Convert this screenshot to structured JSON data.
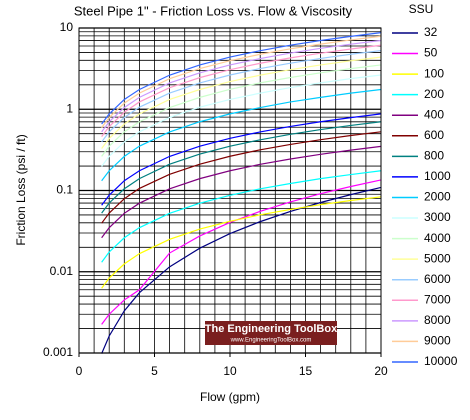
{
  "chart_data": {
    "type": "line",
    "title": "Steel Pipe 1\" - Friction Loss vs. Flow & Viscosity",
    "x_label": "Flow (gpm)",
    "y_label": "Friction Loss (psi / ft)",
    "legend_title": "SSU",
    "legend_position": "right",
    "watermark": "The Engineering ToolBox",
    "watermark_url": "www.EngineeringToolBox.com",
    "y_log": true,
    "grid": true,
    "minor_grid": true,
    "xlim": [
      0,
      20
    ],
    "xticks": [
      0,
      5,
      10,
      15,
      20
    ],
    "ylim": [
      0.001,
      10
    ],
    "yticks": [
      0.001,
      0.01,
      0.1,
      1,
      10
    ],
    "x": [
      1.5,
      2,
      3,
      4,
      6,
      8,
      10,
      12,
      14,
      16,
      18,
      20
    ],
    "series": [
      {
        "name": "32",
        "color": "#000080",
        "values": [
          0.000983,
          0.00162,
          0.0033,
          0.00552,
          0.0115,
          0.0195,
          0.0295,
          0.0414,
          0.0553,
          0.0712,
          0.089,
          0.109
        ]
      },
      {
        "name": "50",
        "color": "#ff00ff",
        "values": [
          0.00225,
          0.003,
          0.0045,
          0.006,
          0.017,
          0.0276,
          0.0404,
          0.0554,
          0.0724,
          0.0914,
          0.112,
          0.135
        ]
      },
      {
        "name": "100",
        "color": "#ffff00",
        "values": [
          0.00627,
          0.00836,
          0.0125,
          0.0167,
          0.0251,
          0.0335,
          0.0418,
          0.0502,
          0.0585,
          0.0669,
          0.0753,
          0.0836
        ]
      },
      {
        "name": "200",
        "color": "#00ffff",
        "values": [
          0.0131,
          0.0175,
          0.0262,
          0.0349,
          0.0524,
          0.0698,
          0.0873,
          0.105,
          0.122,
          0.14,
          0.157,
          0.175
        ]
      },
      {
        "name": "400",
        "color": "#800080",
        "values": [
          0.0262,
          0.0349,
          0.0524,
          0.0698,
          0.105,
          0.14,
          0.175,
          0.21,
          0.244,
          0.279,
          0.314,
          0.349
        ]
      },
      {
        "name": "600",
        "color": "#800000",
        "values": [
          0.0396,
          0.0528,
          0.0792,
          0.106,
          0.158,
          0.211,
          0.264,
          0.317,
          0.369,
          0.422,
          0.475,
          0.528
        ]
      },
      {
        "name": "800",
        "color": "#008080",
        "values": [
          0.0527,
          0.0702,
          0.105,
          0.14,
          0.211,
          0.281,
          0.351,
          0.421,
          0.492,
          0.562,
          0.632,
          0.702
        ]
      },
      {
        "name": "1000",
        "color": "#0000ff",
        "values": [
          0.0658,
          0.0877,
          0.132,
          0.175,
          0.263,
          0.351,
          0.439,
          0.526,
          0.614,
          0.702,
          0.789,
          0.877
        ]
      },
      {
        "name": "2000",
        "color": "#00ccff",
        "values": [
          0.132,
          0.175,
          0.263,
          0.351,
          0.526,
          0.702,
          0.877,
          1.05,
          1.23,
          1.4,
          1.58,
          1.75
        ]
      },
      {
        "name": "3000",
        "color": "#ccffff",
        "values": [
          0.198,
          0.264,
          0.396,
          0.528,
          0.792,
          1.06,
          1.32,
          1.58,
          1.85,
          2.11,
          2.38,
          2.64
        ]
      },
      {
        "name": "4000",
        "color": "#ccffcc",
        "values": [
          0.263,
          0.351,
          0.527,
          0.702,
          1.05,
          1.4,
          1.76,
          2.11,
          2.46,
          2.81,
          3.16,
          3.51
        ]
      },
      {
        "name": "5000",
        "color": "#ffff99",
        "values": [
          0.329,
          0.438,
          0.658,
          0.877,
          1.32,
          1.75,
          2.19,
          2.63,
          3.07,
          3.51,
          3.95,
          4.38
        ]
      },
      {
        "name": "6000",
        "color": "#99ccff",
        "values": [
          0.396,
          0.528,
          0.792,
          1.06,
          1.58,
          2.11,
          2.64,
          3.17,
          3.69,
          4.22,
          4.75,
          5.28
        ]
      },
      {
        "name": "7000",
        "color": "#ff99cc",
        "values": [
          0.46,
          0.613,
          0.92,
          1.23,
          1.84,
          2.45,
          3.07,
          3.68,
          4.29,
          4.9,
          5.52,
          6.13
        ]
      },
      {
        "name": "8000",
        "color": "#cc99ff",
        "values": [
          0.527,
          0.702,
          1.05,
          1.4,
          2.11,
          2.81,
          3.51,
          4.21,
          4.92,
          5.62,
          6.32,
          7.02
        ]
      },
      {
        "name": "9000",
        "color": "#ffcc99",
        "values": [
          0.594,
          0.792,
          1.19,
          1.58,
          2.38,
          3.17,
          3.96,
          4.75,
          5.54,
          6.33,
          7.13,
          7.92
        ]
      },
      {
        "name": "10000",
        "color": "#3366ff",
        "values": [
          0.658,
          0.877,
          1.32,
          1.75,
          2.63,
          3.51,
          4.39,
          5.26,
          6.14,
          7.02,
          7.89,
          8.77
        ]
      }
    ]
  }
}
